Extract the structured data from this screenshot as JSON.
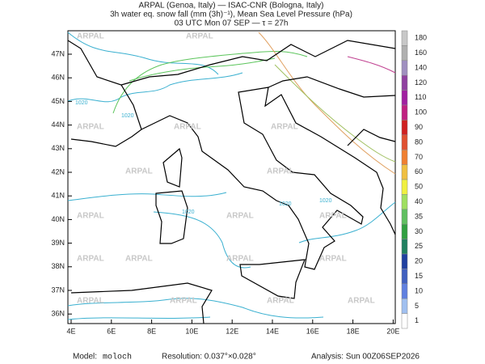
{
  "header": {
    "line1": "ARPAL (Genoa, Italy)  —  ISAC-CNR (Bologna, Italy)",
    "line2": "3h water eq. snow fall (mm (3h)⁻¹), Mean Sea Level Pressure (hPa)",
    "line3": "03 UTC Mon 07 SEP  —  τ = 27h"
  },
  "map": {
    "lat_labels": [
      "47N",
      "46N",
      "45N",
      "44N",
      "43N",
      "42N",
      "41N",
      "40N",
      "39N",
      "38N",
      "37N",
      "36N"
    ],
    "lon_labels": [
      "4E",
      "6E",
      "8E",
      "10E",
      "12E",
      "14E",
      "16E",
      "18E",
      "20E"
    ],
    "watermark": "ARPAL",
    "isobar_label": "1020"
  },
  "colorbar": {
    "labels": [
      180,
      160,
      140,
      120,
      110,
      100,
      90,
      80,
      70,
      60,
      50,
      40,
      35,
      30,
      25,
      20,
      15,
      10,
      5,
      1
    ],
    "colors": [
      "#c8c8c8",
      "#b0b0b0",
      "#a090c0",
      "#9040a0",
      "#a020a0",
      "#c02080",
      "#d02020",
      "#e05030",
      "#f08030",
      "#f0c040",
      "#f0f040",
      "#a0e060",
      "#60c060",
      "#30a040",
      "#208060",
      "#2040a0",
      "#4060c0",
      "#6080e0",
      "#a0c0f0",
      "#ffffff"
    ]
  },
  "footer": {
    "model_label": "Model:",
    "model": "moloch",
    "resolution": "Resolution: 0.037°×0.028°",
    "analysis": "Analysis: Sun 00Z06SEP2026"
  }
}
